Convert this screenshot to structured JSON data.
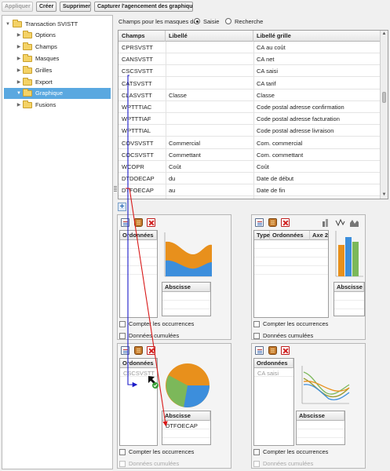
{
  "toolbar": {
    "apply": "Appliquer",
    "create": "Créer",
    "delete": "Supprimer",
    "capture": "Capturer l'agencement des graphiques"
  },
  "tree": {
    "root": "Transaction SVISTT",
    "items": [
      {
        "label": "Options",
        "selected": false
      },
      {
        "label": "Champs",
        "selected": false
      },
      {
        "label": "Masques",
        "selected": false
      },
      {
        "label": "Grilles",
        "selected": false
      },
      {
        "label": "Export",
        "selected": false
      },
      {
        "label": "Graphique",
        "selected": true
      },
      {
        "label": "Fusions",
        "selected": false
      }
    ]
  },
  "masks": {
    "label": "Champs pour les masques de",
    "option_input": "Saisie",
    "option_search": "Recherche",
    "selected": "Saisie"
  },
  "grid": {
    "columns": [
      "Champs",
      "Libellé",
      "Libellé grille"
    ],
    "rows": [
      [
        "CPRSVSTT",
        "",
        "CA au coût"
      ],
      [
        "CANSVSTT",
        "",
        "CA net"
      ],
      [
        "CSCSVSTT",
        "",
        "CA saisi"
      ],
      [
        "CATSVSTT",
        "",
        "CA tarif"
      ],
      [
        "CLASVSTT",
        "Classe",
        "Classe"
      ],
      [
        "WPTTTIAC",
        "",
        "Code postal adresse confirmation"
      ],
      [
        "WPTTTIAF",
        "",
        "Code postal adresse facturation"
      ],
      [
        "WPTTTIAL",
        "",
        "Code postal adresse livraison"
      ],
      [
        "COVSVSTT",
        "Commercial",
        "Com. commercial"
      ],
      [
        "COCSVSTT",
        "Commettant",
        "Com. commettant"
      ],
      [
        "WCOPR",
        "Coût",
        "Coût"
      ],
      [
        "DTDOECAP",
        "du",
        "Date de début"
      ],
      [
        "DTFOECAP",
        "au",
        "Date de fin"
      ]
    ]
  },
  "panels": {
    "ordinates": "Ordonnées",
    "abscissa": "Abscisse",
    "type": "Type",
    "axis2": "Axe 2",
    "count": "Compter les occurrences",
    "cumulative": "Données cumulées",
    "pie_ordinate_value": "CSCSVSTT",
    "pie_abscissa_value": "DTFOECAP",
    "line_ordinate_value": "CA saisi"
  },
  "colors": {
    "selection": "#5aa8e0",
    "arrow_blue": "#1c1cc8",
    "arrow_red": "#d81818",
    "chart_orange": "#e8901c",
    "chart_blue": "#3c8edc",
    "chart_green": "#7cb85a",
    "chart_olive": "#9a9a2a"
  }
}
